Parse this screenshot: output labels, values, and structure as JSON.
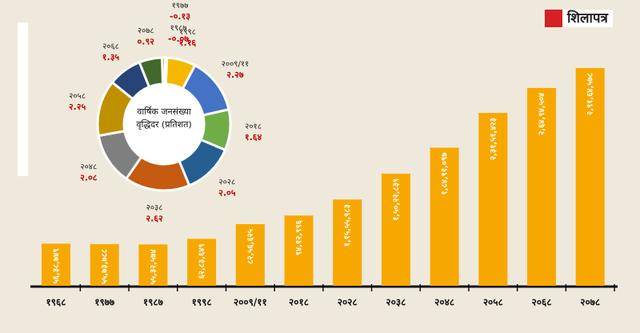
{
  "logo": {
    "text": "शिलापत्र"
  },
  "chart_data": [
    {
      "type": "bar",
      "categories": [
        "१९६८",
        "१९७७",
        "१९८७",
        "१९९८",
        "२००९/११",
        "२०१८",
        "२०२८",
        "२०३८",
        "२०४८",
        "२०५८",
        "२०६८",
        "२०७८"
      ],
      "values": [
        5638749,
        5573788,
        5532574,
        6283649,
        8256625,
        9412996,
        11555983,
        15022839,
        18491097,
        23151423,
        26494504,
        29164578
      ],
      "value_labels": [
        "५६,३८,७४९",
        "५५,७३,७८८",
        "५५,३२,५७४",
        "६२,८३,६४९",
        "८२,५६,६२५",
        "९४,१२,९९६",
        "१,१५,५५,९८३",
        "१,५०,२२,८३९",
        "१,८४,९१,०९७",
        "२,३१,५१,४२३",
        "२,६४,९४,५०४",
        "२,९१,६४,५७८"
      ],
      "color": "#f7a800"
    },
    {
      "type": "pie",
      "title": "वार्षिक जनसंख्या वृद्धिदर (प्रतिशत)",
      "categories": [
        "१९७७",
        "१९८७",
        "१९९८",
        "२००९/११",
        "२०१८",
        "२०२८",
        "२०३८",
        "२०४८",
        "२०५८",
        "२०६८",
        "२०७८"
      ],
      "values": [
        -0.13,
        -0.07,
        1.16,
        2.27,
        1.64,
        2.05,
        2.62,
        2.08,
        2.25,
        1.35,
        0.92
      ],
      "value_labels": [
        "-०.१३",
        "-०.०७",
        "१.१६",
        "२.२७",
        "१.६४",
        "२.०५",
        "२.६२",
        "२.०८",
        "२.२५",
        "१.३५",
        "०.९२"
      ],
      "colors": [
        "#e8772e",
        "#d9542b",
        "#f5b800",
        "#4472c4",
        "#70ad47",
        "#255e91",
        "#c55a11",
        "#7f7f7f",
        "#bf9000",
        "#264478",
        "#43682b"
      ]
    }
  ]
}
